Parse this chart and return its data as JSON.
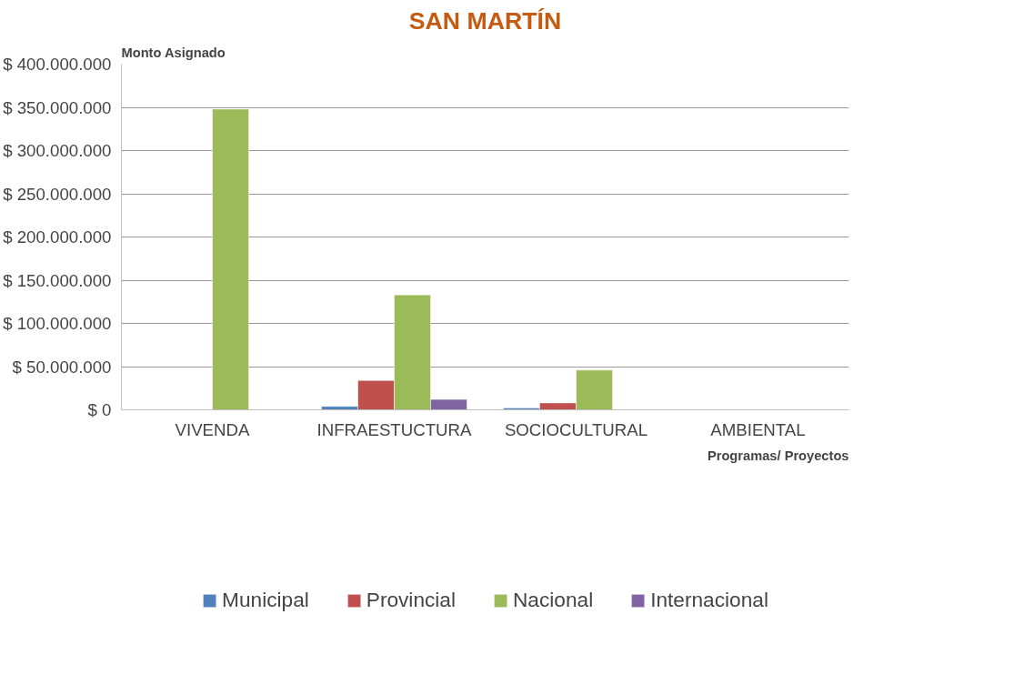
{
  "chart_data": {
    "type": "bar",
    "title": "SAN MARTÍN",
    "ylabel": "Monto Asignado",
    "xlabel": "Programas/ Proyectos",
    "categories": [
      "VIVENDA",
      "INFRAESTUCTURA",
      "SOCIOCULTURAL",
      "AMBIENTAL"
    ],
    "series": [
      {
        "name": "Municipal",
        "color": "#4f81bd",
        "values": [
          null,
          4000000,
          2000000,
          null
        ]
      },
      {
        "name": "Provincial",
        "color": "#c0504d",
        "values": [
          null,
          34000000,
          8000000,
          null
        ]
      },
      {
        "name": "Nacional",
        "color": "#9bbb59",
        "values": [
          348000000,
          133000000,
          46000000,
          null
        ]
      },
      {
        "name": "Internacional",
        "color": "#8064a2",
        "values": [
          null,
          12000000,
          null,
          null
        ]
      }
    ],
    "ylim": [
      0,
      400000000
    ],
    "yticks": [
      {
        "value": 0,
        "label": "$ 0"
      },
      {
        "value": 50000000,
        "label": "$ 50.000.000"
      },
      {
        "value": 100000000,
        "label": "$ 100.000.000"
      },
      {
        "value": 150000000,
        "label": "$ 150.000.000"
      },
      {
        "value": 200000000,
        "label": "$ 200.000.000"
      },
      {
        "value": 250000000,
        "label": "$ 250.000.000"
      },
      {
        "value": 300000000,
        "label": "$ 300.000.000"
      },
      {
        "value": 350000000,
        "label": "$ 350.000.000"
      },
      {
        "value": 400000000,
        "label": "$ 400.000.000"
      }
    ],
    "grid": "y",
    "legend": "bottom"
  }
}
